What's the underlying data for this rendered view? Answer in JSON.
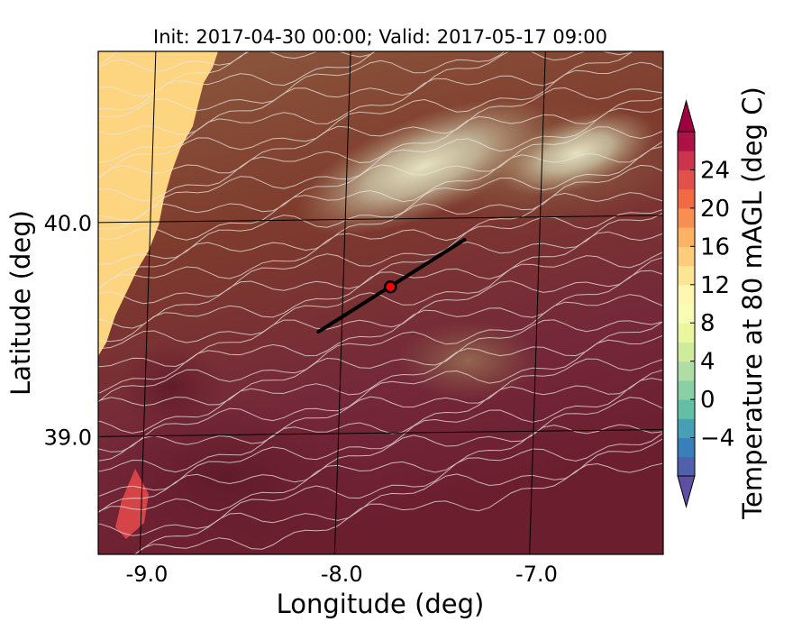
{
  "chart_data": {
    "type": "heatmap",
    "title": "Init: 2017-04-30 00:00; Valid: 2017-05-17 09:00",
    "xlabel": "Longitude (deg)",
    "ylabel": "Latitude (deg)",
    "xlim": [
      -9.25,
      -6.35
    ],
    "ylim": [
      38.45,
      40.8
    ],
    "x_ticks": [
      {
        "value": -9.0,
        "label": "-9.0"
      },
      {
        "value": -8.0,
        "label": "-8.0"
      },
      {
        "value": -7.0,
        "label": "-7.0"
      }
    ],
    "y_ticks": [
      {
        "value": 40.0,
        "label": "40.0"
      },
      {
        "value": 39.0,
        "label": "39.0"
      }
    ],
    "grid": true,
    "colorbar": {
      "label": "Temperature at 80 mAGL (deg C)",
      "vmin": -8,
      "vmax": 28,
      "step": 2,
      "extend": "both",
      "ticks": [
        {
          "value": -4,
          "label": "−4"
        },
        {
          "value": 0,
          "label": "0"
        },
        {
          "value": 4,
          "label": "4"
        },
        {
          "value": 8,
          "label": "8"
        },
        {
          "value": 12,
          "label": "12"
        },
        {
          "value": 16,
          "label": "16"
        },
        {
          "value": 20,
          "label": "20"
        },
        {
          "value": 24,
          "label": "24"
        }
      ]
    },
    "transect": {
      "start": {
        "lon": -8.12,
        "lat": 39.49
      },
      "end": {
        "lon": -7.37,
        "lat": 39.92
      }
    },
    "point": {
      "lon": -7.75,
      "lat": 39.7,
      "color": "#ff0000"
    },
    "colors": {
      "ocean": "#fdd47f",
      "land_high": "#a08060",
      "land_mid": "#7e3b2c",
      "land_low": "#6a1e2e",
      "contour": "#e8e4e0"
    }
  }
}
